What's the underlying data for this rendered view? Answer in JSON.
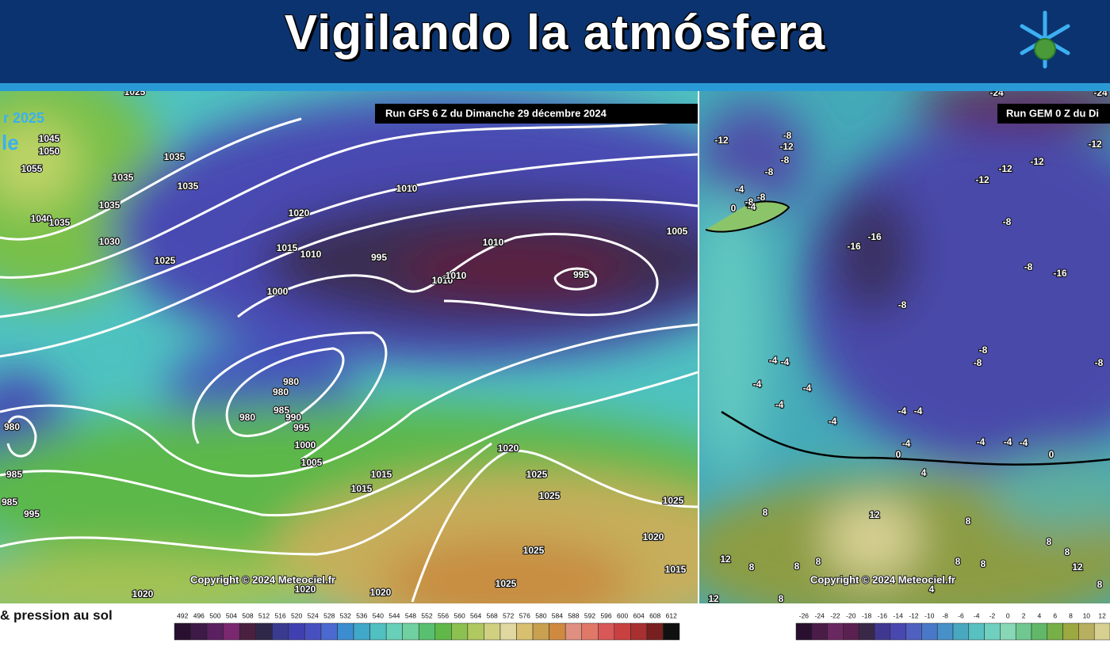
{
  "header": {
    "title": "Vigilando la atmósfera"
  },
  "left_map": {
    "run_label": "Run GFS 6 Z du Dimanche 29 décembre 2024",
    "partial_labels": [
      "r 2025",
      "le"
    ],
    "isobar_labels": [
      1025,
      1045,
      1050,
      1055,
      1040,
      1035,
      1035,
      1035,
      1035,
      1035,
      1030,
      1025,
      1020,
      1015,
      1010,
      1010,
      995,
      1010,
      1010,
      1010,
      995,
      1005,
      1000,
      980,
      980,
      985,
      990,
      995,
      980,
      1000,
      1005,
      1015,
      1015,
      1020,
      1025,
      1025,
      1025,
      1020,
      1025,
      1015,
      1025,
      1020,
      1020,
      1020,
      980,
      985,
      985,
      995
    ],
    "copyright": "Copyright © 2024 Meteociel.fr"
  },
  "right_map": {
    "run_label": "Run GEM 0 Z du Di",
    "temperature_labels": [
      -24,
      -24,
      -12,
      -8,
      -12,
      -8,
      -8,
      -4,
      -8,
      -8,
      0,
      -4,
      -12,
      -12,
      -12,
      -12,
      -8,
      -16,
      -16,
      -8,
      -16,
      -8,
      -4,
      -4,
      -4,
      -4,
      -4,
      -4,
      -4,
      -4,
      -8,
      -8,
      -8,
      -4,
      0,
      -4,
      -4,
      -4,
      0,
      4,
      8,
      12,
      8,
      12,
      8,
      8,
      8,
      8,
      8,
      8,
      8,
      12,
      8,
      12,
      8,
      4
    ],
    "copyright": "Copyright © 2024 Meteociel.fr"
  },
  "legend": {
    "caption": "& pression au sol",
    "left_scale": [
      492,
      496,
      500,
      504,
      508,
      512,
      516,
      520,
      524,
      528,
      532,
      536,
      540,
      544,
      548,
      552,
      556,
      560,
      564,
      568,
      572,
      576,
      580,
      584,
      588,
      592,
      596,
      600,
      604,
      608,
      612
    ],
    "right_scale": [
      -26,
      -24,
      -22,
      -20,
      -18,
      -16,
      -14,
      -12,
      -10,
      -8,
      -6,
      -4,
      -2,
      0,
      2,
      4,
      6,
      8,
      10,
      12
    ]
  }
}
